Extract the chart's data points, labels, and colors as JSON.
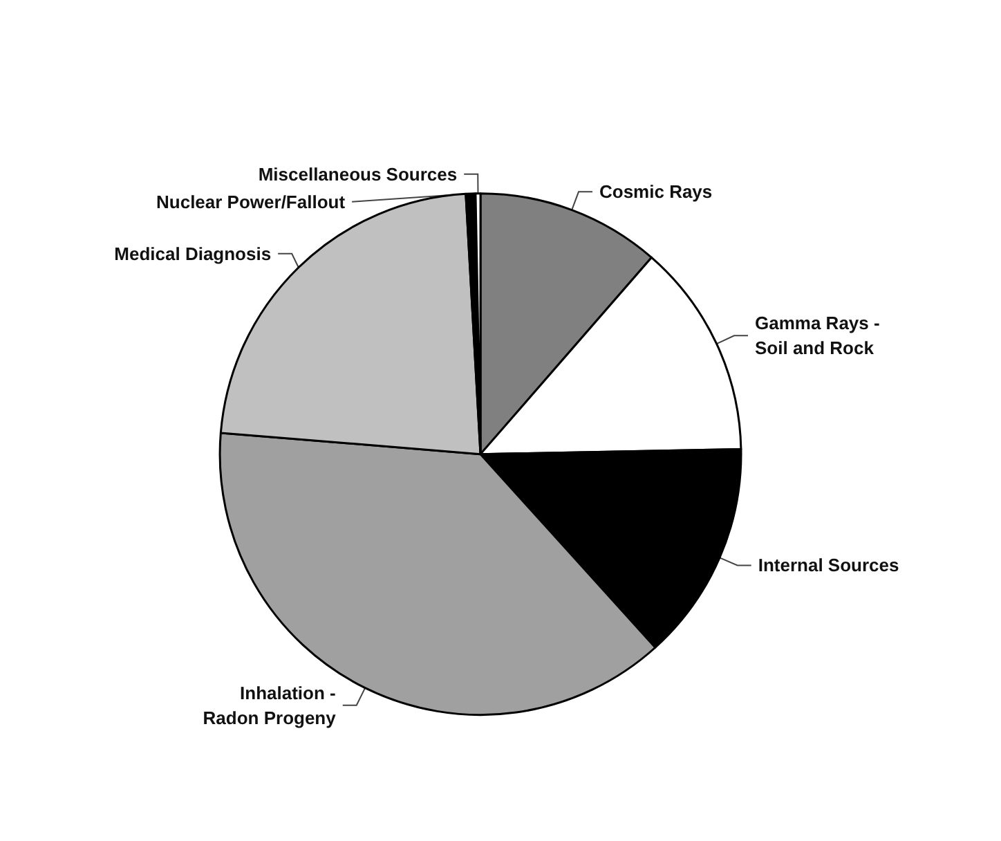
{
  "chart_data": {
    "type": "pie",
    "categories": [
      "Cosmic Rays",
      "Gamma Rays -\nSoil and Rock",
      "Internal Sources",
      "Inhalation -\nRadon Progeny",
      "Medical Diagnosis",
      "Nuclear Power/Fallout",
      "Miscellaneous Sources"
    ],
    "values": [
      11.4,
      13.3,
      13.6,
      38,
      22.8,
      0.6,
      0.3
    ],
    "colors": [
      "#808080",
      "#ffffff",
      "#000000",
      "#a0a0a0",
      "#c0c0c0",
      "#000000",
      "#ffffff"
    ],
    "legend": false
  }
}
